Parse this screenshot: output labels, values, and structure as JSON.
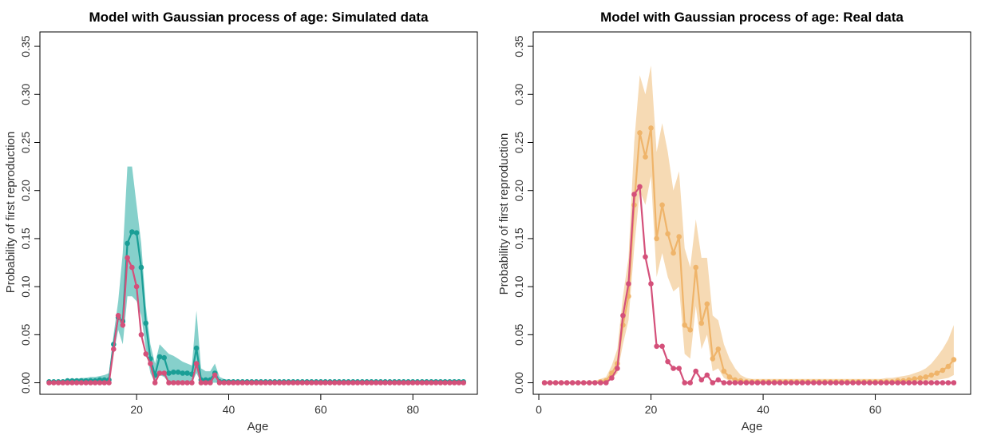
{
  "colors": {
    "teal": "#1a9e96",
    "teal_band": "#7fcdc8",
    "pink": "#d4507a",
    "orange": "#efb46a",
    "orange_band": "#f5d8b0"
  },
  "chart_data": [
    {
      "type": "line",
      "title": "Model with Gaussian process of age: Simulated data",
      "xlabel": "Age",
      "ylabel": "Probability of first reproduction",
      "xlim": [
        -1,
        94
      ],
      "ylim": [
        -0.012,
        0.365
      ],
      "xticks": [
        20,
        40,
        60,
        80
      ],
      "yticks": [
        0.0,
        0.05,
        0.1,
        0.15,
        0.2,
        0.25,
        0.3,
        0.35
      ],
      "ytick_labels": [
        "0.00",
        "0.05",
        "0.10",
        "0.15",
        "0.20",
        "0.25",
        "0.30",
        "0.35"
      ],
      "grid": false,
      "x": [
        1,
        2,
        3,
        4,
        5,
        6,
        7,
        8,
        9,
        10,
        11,
        12,
        13,
        14,
        15,
        16,
        17,
        18,
        19,
        20,
        21,
        22,
        23,
        24,
        25,
        26,
        27,
        28,
        29,
        30,
        31,
        32,
        33,
        34,
        35,
        36,
        37,
        38,
        39,
        40,
        41,
        42,
        43,
        44,
        45,
        46,
        47,
        48,
        49,
        50,
        51,
        52,
        53,
        54,
        55,
        56,
        57,
        58,
        59,
        60,
        61,
        62,
        63,
        64,
        65,
        66,
        67,
        68,
        69,
        70,
        71,
        72,
        73,
        74,
        75,
        76,
        77,
        78,
        79,
        80,
        81,
        82,
        83,
        84,
        85,
        86,
        87,
        88,
        89,
        90,
        91
      ],
      "series": [
        {
          "color": "teal",
          "values": [
            0.001,
            0.001,
            0.001,
            0.001,
            0.002,
            0.002,
            0.002,
            0.002,
            0.002,
            0.002,
            0.002,
            0.003,
            0.003,
            0.003,
            0.04,
            0.068,
            0.064,
            0.145,
            0.157,
            0.156,
            0.12,
            0.062,
            0.025,
            0.008,
            0.027,
            0.026,
            0.01,
            0.011,
            0.011,
            0.01,
            0.01,
            0.009,
            0.036,
            0.003,
            0.003,
            0.003,
            0.01,
            0.001,
            0.001,
            0.001,
            0.001,
            0.001,
            0.001,
            0.001,
            0.001,
            0.001,
            0.001,
            0.001,
            0.001,
            0.001,
            0.001,
            0.001,
            0.001,
            0.001,
            0.001,
            0.001,
            0.001,
            0.001,
            0.001,
            0.001,
            0.001,
            0.001,
            0.001,
            0.001,
            0.001,
            0.001,
            0.001,
            0.001,
            0.001,
            0.001,
            0.001,
            0.001,
            0.001,
            0.001,
            0.001,
            0.001,
            0.001,
            0.001,
            0.001,
            0.001,
            0.001,
            0.001,
            0.001,
            0.001,
            0.001,
            0.001,
            0.001,
            0.001,
            0.001,
            0.001,
            0.001
          ],
          "band_upper": [
            0.002,
            0.002,
            0.002,
            0.003,
            0.003,
            0.004,
            0.004,
            0.005,
            0.005,
            0.006,
            0.006,
            0.007,
            0.008,
            0.01,
            0.05,
            0.085,
            0.135,
            0.225,
            0.225,
            0.185,
            0.145,
            0.08,
            0.04,
            0.02,
            0.04,
            0.035,
            0.03,
            0.028,
            0.025,
            0.022,
            0.02,
            0.018,
            0.075,
            0.015,
            0.012,
            0.012,
            0.02,
            0.006,
            0.004,
            0.003,
            0.003,
            0.002,
            0.002,
            0.002,
            0.002,
            0.002,
            0.002,
            0.002,
            0.002,
            0.002,
            0.002,
            0.002,
            0.002,
            0.002,
            0.002,
            0.002,
            0.002,
            0.002,
            0.002,
            0.002,
            0.002,
            0.002,
            0.002,
            0.002,
            0.002,
            0.002,
            0.002,
            0.002,
            0.002,
            0.002,
            0.002,
            0.002,
            0.002,
            0.002,
            0.002,
            0.002,
            0.002,
            0.002,
            0.002,
            0.002,
            0.002,
            0.002,
            0.002,
            0.003,
            0.003,
            0.003,
            0.003,
            0.003,
            0.003,
            0.003,
            0.003
          ],
          "band_lower": [
            0,
            0,
            0,
            0,
            0,
            0,
            0,
            0,
            0,
            0,
            0,
            0,
            0,
            0,
            0.03,
            0.055,
            0.04,
            0.09,
            0.09,
            0.085,
            0.07,
            0.035,
            0.01,
            0,
            0.008,
            0.006,
            0,
            0,
            0,
            0,
            0,
            0,
            0.01,
            0,
            0,
            0,
            0,
            0,
            0,
            0,
            0,
            0,
            0,
            0,
            0,
            0,
            0,
            0,
            0,
            0,
            0,
            0,
            0,
            0,
            0,
            0,
            0,
            0,
            0,
            0,
            0,
            0,
            0,
            0,
            0,
            0,
            0,
            0,
            0,
            0,
            0,
            0,
            0,
            0,
            0,
            0,
            0,
            0,
            0,
            0,
            0,
            0,
            0,
            0,
            0,
            0,
            0,
            0,
            0,
            0,
            0
          ]
        },
        {
          "color": "pink",
          "values": [
            0,
            0,
            0,
            0,
            0,
            0,
            0,
            0,
            0,
            0,
            0,
            0,
            0,
            0,
            0.035,
            0.07,
            0.06,
            0.13,
            0.12,
            0.1,
            0.05,
            0.03,
            0.02,
            0,
            0.01,
            0.01,
            0,
            0,
            0,
            0,
            0,
            0,
            0.02,
            0,
            0,
            0,
            0.008,
            0,
            0,
            0,
            0,
            0,
            0,
            0,
            0,
            0,
            0,
            0,
            0,
            0,
            0,
            0,
            0,
            0,
            0,
            0,
            0,
            0,
            0,
            0,
            0,
            0,
            0,
            0,
            0,
            0,
            0,
            0,
            0,
            0,
            0,
            0,
            0,
            0,
            0,
            0,
            0,
            0,
            0,
            0,
            0,
            0,
            0,
            0,
            0,
            0,
            0,
            0,
            0,
            0,
            0
          ]
        }
      ]
    },
    {
      "type": "line",
      "title": "Model with Gaussian process of age: Real data",
      "xlabel": "Age",
      "ylabel": "Probability of first reproduction",
      "xlim": [
        -1,
        77
      ],
      "ylim": [
        -0.012,
        0.365
      ],
      "xticks": [
        0,
        20,
        40,
        60
      ],
      "yticks": [
        0.0,
        0.05,
        0.1,
        0.15,
        0.2,
        0.25,
        0.3,
        0.35
      ],
      "ytick_labels": [
        "0.00",
        "0.05",
        "0.10",
        "0.15",
        "0.20",
        "0.25",
        "0.30",
        "0.35"
      ],
      "grid": false,
      "x": [
        1,
        2,
        3,
        4,
        5,
        6,
        7,
        8,
        9,
        10,
        11,
        12,
        13,
        14,
        15,
        16,
        17,
        18,
        19,
        20,
        21,
        22,
        23,
        24,
        25,
        26,
        27,
        28,
        29,
        30,
        31,
        32,
        33,
        34,
        35,
        36,
        37,
        38,
        39,
        40,
        41,
        42,
        43,
        44,
        45,
        46,
        47,
        48,
        49,
        50,
        51,
        52,
        53,
        54,
        55,
        56,
        57,
        58,
        59,
        60,
        61,
        62,
        63,
        64,
        65,
        66,
        67,
        68,
        69,
        70,
        71,
        72,
        73,
        74
      ],
      "series": [
        {
          "color": "orange",
          "values": [
            0,
            0,
            0,
            0,
            0,
            0,
            0,
            0,
            0,
            0,
            0.001,
            0.002,
            0.01,
            0.02,
            0.06,
            0.09,
            0.185,
            0.26,
            0.235,
            0.265,
            0.15,
            0.185,
            0.155,
            0.135,
            0.152,
            0.06,
            0.055,
            0.12,
            0.062,
            0.082,
            0.025,
            0.035,
            0.012,
            0.006,
            0.003,
            0.002,
            0.001,
            0.001,
            0.001,
            0.001,
            0.001,
            0.001,
            0.001,
            0.001,
            0.001,
            0.001,
            0.001,
            0.001,
            0.001,
            0.001,
            0.001,
            0.001,
            0.001,
            0.001,
            0.001,
            0.001,
            0.001,
            0.001,
            0.001,
            0.001,
            0.001,
            0.001,
            0.001,
            0.002,
            0.002,
            0.003,
            0.004,
            0.005,
            0.006,
            0.008,
            0.01,
            0.013,
            0.017,
            0.024
          ],
          "band_upper": [
            0.001,
            0.001,
            0.001,
            0.001,
            0.001,
            0.001,
            0.001,
            0.001,
            0.002,
            0.002,
            0.004,
            0.006,
            0.018,
            0.035,
            0.09,
            0.13,
            0.25,
            0.32,
            0.3,
            0.33,
            0.24,
            0.27,
            0.24,
            0.2,
            0.22,
            0.14,
            0.12,
            0.17,
            0.13,
            0.13,
            0.07,
            0.065,
            0.04,
            0.025,
            0.015,
            0.008,
            0.005,
            0.004,
            0.004,
            0.004,
            0.004,
            0.004,
            0.004,
            0.004,
            0.004,
            0.004,
            0.004,
            0.004,
            0.004,
            0.004,
            0.004,
            0.004,
            0.004,
            0.004,
            0.004,
            0.004,
            0.004,
            0.004,
            0.004,
            0.004,
            0.004,
            0.005,
            0.005,
            0.006,
            0.007,
            0.008,
            0.01,
            0.012,
            0.015,
            0.02,
            0.027,
            0.035,
            0.045,
            0.06
          ],
          "band_lower": [
            0,
            0,
            0,
            0,
            0,
            0,
            0,
            0,
            0,
            0,
            0,
            0,
            0.004,
            0.01,
            0.04,
            0.065,
            0.14,
            0.2,
            0.185,
            0.215,
            0.11,
            0.135,
            0.11,
            0.095,
            0.1,
            0.03,
            0.025,
            0.08,
            0.035,
            0.05,
            0.012,
            0.015,
            0.005,
            0.002,
            0.001,
            0,
            0,
            0,
            0,
            0,
            0,
            0,
            0,
            0,
            0,
            0,
            0,
            0,
            0,
            0,
            0,
            0,
            0,
            0,
            0,
            0,
            0,
            0,
            0,
            0,
            0,
            0,
            0,
            0,
            0,
            0,
            0,
            0.001,
            0.001,
            0.002,
            0.003,
            0.004,
            0.005,
            0.008
          ]
        },
        {
          "color": "pink",
          "values": [
            0,
            0,
            0,
            0,
            0,
            0,
            0,
            0,
            0,
            0,
            0,
            0,
            0.005,
            0.015,
            0.07,
            0.103,
            0.196,
            0.204,
            0.131,
            0.103,
            0.038,
            0.038,
            0.022,
            0.015,
            0.015,
            0,
            0,
            0.012,
            0.003,
            0.008,
            0,
            0.003,
            0,
            0,
            0,
            0,
            0,
            0,
            0,
            0,
            0,
            0,
            0,
            0,
            0,
            0,
            0,
            0,
            0,
            0,
            0,
            0,
            0,
            0,
            0,
            0,
            0,
            0,
            0,
            0,
            0,
            0,
            0,
            0,
            0,
            0,
            0,
            0,
            0,
            0,
            0,
            0,
            0,
            0
          ]
        }
      ]
    }
  ]
}
